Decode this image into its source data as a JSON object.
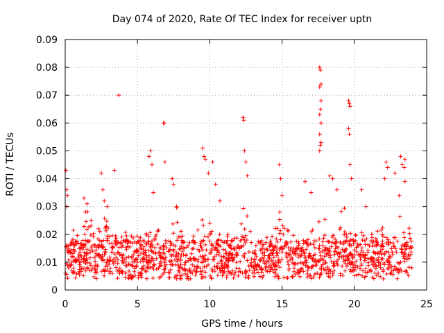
{
  "chart_data": {
    "type": "scatter",
    "title": "Day 074 of 2020, Rate Of TEC Index for receiver uptn",
    "xlabel": "GPS time / hours",
    "ylabel": "ROTI / TECUs",
    "xlim": [
      0,
      25
    ],
    "ylim": [
      0,
      0.09
    ],
    "x_ticks": [
      "0",
      "5",
      "10",
      "15",
      "20",
      "25"
    ],
    "y_ticks": [
      "0",
      "0.01",
      "0.02",
      "0.03",
      "0.04",
      "0.05",
      "0.06",
      "0.07",
      "0.08",
      "0.09"
    ],
    "grid": true,
    "marker": "+",
    "color": "#ff0000",
    "series": [
      {
        "name": "ROTI",
        "points": [
          [
            0.05,
            0.043
          ],
          [
            0.1,
            0.036
          ],
          [
            0.15,
            0.034
          ],
          [
            0.1,
            0.03
          ],
          [
            1.3,
            0.033
          ],
          [
            1.5,
            0.031
          ],
          [
            1.4,
            0.028
          ],
          [
            2.5,
            0.042
          ],
          [
            2.7,
            0.032
          ],
          [
            2.9,
            0.03
          ],
          [
            2.6,
            0.036
          ],
          [
            3.4,
            0.043
          ],
          [
            3.7,
            0.07
          ],
          [
            5.9,
            0.05
          ],
          [
            6.0,
            0.045
          ],
          [
            6.1,
            0.035
          ],
          [
            5.8,
            0.048
          ],
          [
            6.8,
            0.06
          ],
          [
            6.85,
            0.06
          ],
          [
            6.9,
            0.046
          ],
          [
            7.4,
            0.04
          ],
          [
            7.5,
            0.038
          ],
          [
            7.7,
            0.03
          ],
          [
            9.5,
            0.051
          ],
          [
            9.6,
            0.048
          ],
          [
            9.7,
            0.047
          ],
          [
            9.9,
            0.042
          ],
          [
            10.2,
            0.046
          ],
          [
            10.4,
            0.038
          ],
          [
            10.7,
            0.032
          ],
          [
            12.3,
            0.062
          ],
          [
            12.35,
            0.061
          ],
          [
            12.4,
            0.05
          ],
          [
            12.5,
            0.046
          ],
          [
            12.6,
            0.041
          ],
          [
            14.8,
            0.045
          ],
          [
            14.9,
            0.04
          ],
          [
            15.0,
            0.034
          ],
          [
            16.6,
            0.039
          ],
          [
            17.0,
            0.035
          ],
          [
            17.6,
            0.08
          ],
          [
            17.65,
            0.079
          ],
          [
            17.7,
            0.074
          ],
          [
            17.6,
            0.073
          ],
          [
            17.7,
            0.068
          ],
          [
            17.65,
            0.065
          ],
          [
            17.6,
            0.063
          ],
          [
            17.7,
            0.06
          ],
          [
            17.6,
            0.056
          ],
          [
            17.7,
            0.053
          ],
          [
            17.65,
            0.052
          ],
          [
            17.6,
            0.05
          ],
          [
            18.3,
            0.041
          ],
          [
            18.5,
            0.04
          ],
          [
            18.8,
            0.036
          ],
          [
            19.6,
            0.068
          ],
          [
            19.65,
            0.067
          ],
          [
            19.7,
            0.066
          ],
          [
            19.6,
            0.058
          ],
          [
            19.65,
            0.056
          ],
          [
            19.7,
            0.045
          ],
          [
            19.8,
            0.04
          ],
          [
            20.5,
            0.036
          ],
          [
            20.8,
            0.03
          ],
          [
            22.2,
            0.046
          ],
          [
            22.3,
            0.044
          ],
          [
            22.1,
            0.04
          ],
          [
            22.8,
            0.042
          ],
          [
            23.2,
            0.048
          ],
          [
            23.3,
            0.045
          ],
          [
            23.5,
            0.047
          ],
          [
            23.45,
            0.044
          ],
          [
            23.5,
            0.039
          ],
          [
            23.1,
            0.034
          ]
        ]
      }
    ]
  }
}
